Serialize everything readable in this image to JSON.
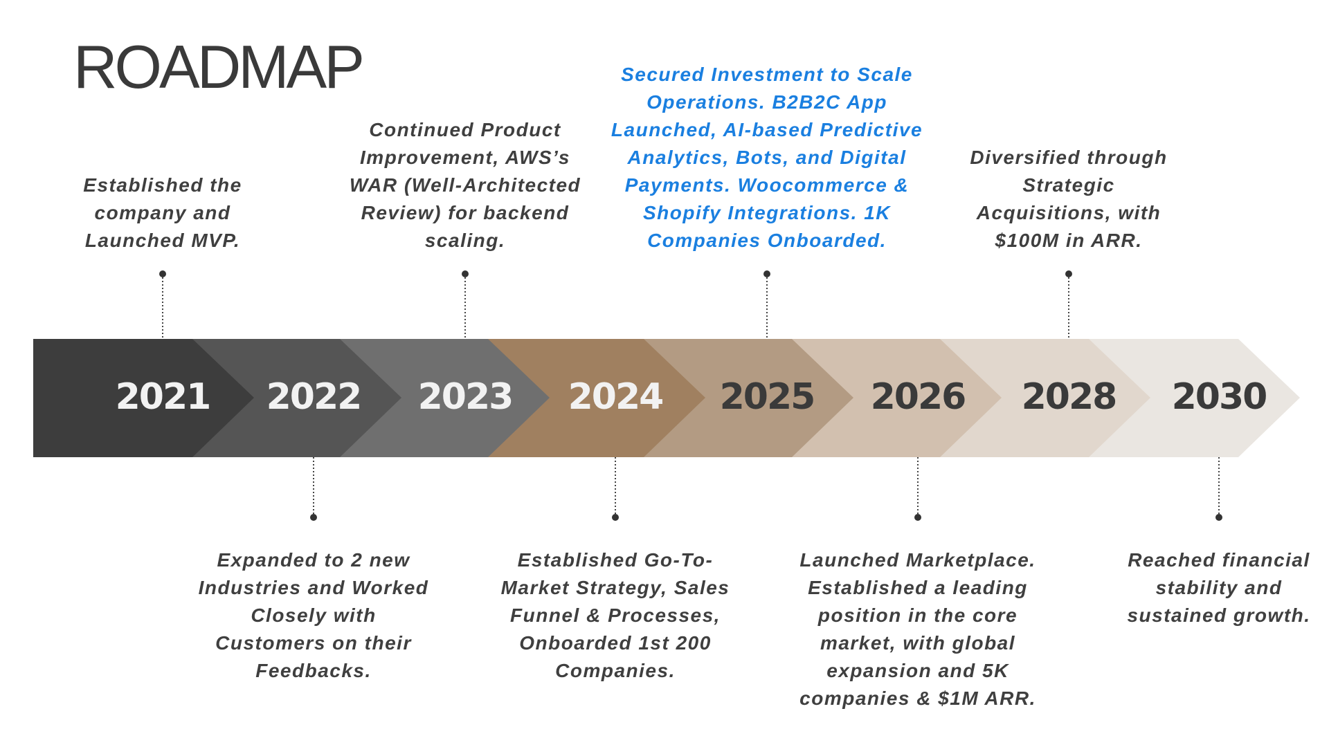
{
  "header": {
    "title": "ROADMAP"
  },
  "milestones": [
    {
      "year": "2021",
      "description": "Established the company and Launched MVP."
    },
    {
      "year": "2022",
      "description": "Expanded to 2 new Industries and Worked Closely with Customers on their Feedbacks."
    },
    {
      "year": "2023",
      "description": "Continued Product Improvement, AWS’s WAR (Well-Architected Review) for backend scaling."
    },
    {
      "year": "2024",
      "description": "Established Go-To-Market Strategy, Sales Funnel & Processes, Onboarded 1st 200 Companies."
    },
    {
      "year": "2025",
      "description": "Secured Investment to Scale Operations. B2B2C App Launched, AI-based Predictive Analytics, Bots, and Digital Payments. Woocommerce & Shopify Integrations. 1K Companies Onboarded."
    },
    {
      "year": "2026",
      "description": "Launched Marketplace. Established a leading position in the core market, with global expansion and 5K companies & $1M ARR."
    },
    {
      "year": "2028",
      "description": "Diversified through Strategic Acquisitions, with $100M in ARR."
    },
    {
      "year": "2030",
      "description": "Reached financial stability and sustained growth."
    }
  ]
}
